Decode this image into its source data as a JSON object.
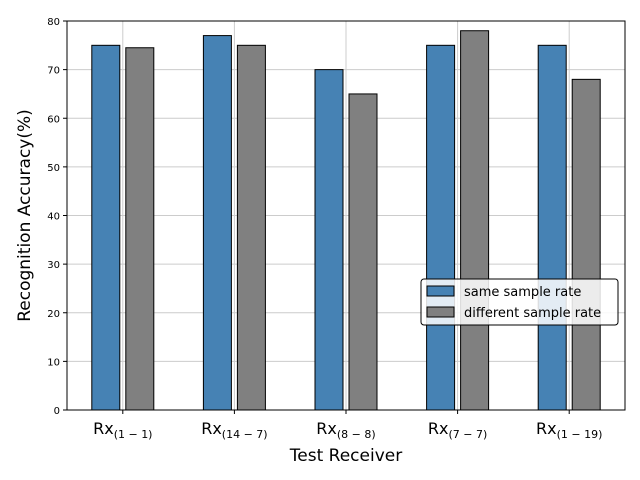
{
  "chart_data": {
    "type": "bar",
    "categories": [
      {
        "base": "Rx",
        "sub": "(1 − 1)"
      },
      {
        "base": "Rx",
        "sub": "(14 − 7)"
      },
      {
        "base": "Rx",
        "sub": "(8 − 8)"
      },
      {
        "base": "Rx",
        "sub": "(7 − 7)"
      },
      {
        "base": "Rx",
        "sub": "(1 − 19)"
      }
    ],
    "series": [
      {
        "name": "same sample rate",
        "color": "#4682b4",
        "values": [
          75,
          77,
          70,
          75,
          75
        ]
      },
      {
        "name": "different sample rate",
        "color": "#808080",
        "values": [
          74.5,
          75,
          65,
          78,
          68
        ]
      }
    ],
    "xlabel": "Test Receiver",
    "ylabel": "Recognition Accuracy(%)",
    "ylim": [
      0,
      80
    ],
    "yticks": [
      0,
      10,
      20,
      30,
      40,
      50,
      60,
      70,
      80
    ],
    "grid": true,
    "legend_position": "lower-right"
  }
}
